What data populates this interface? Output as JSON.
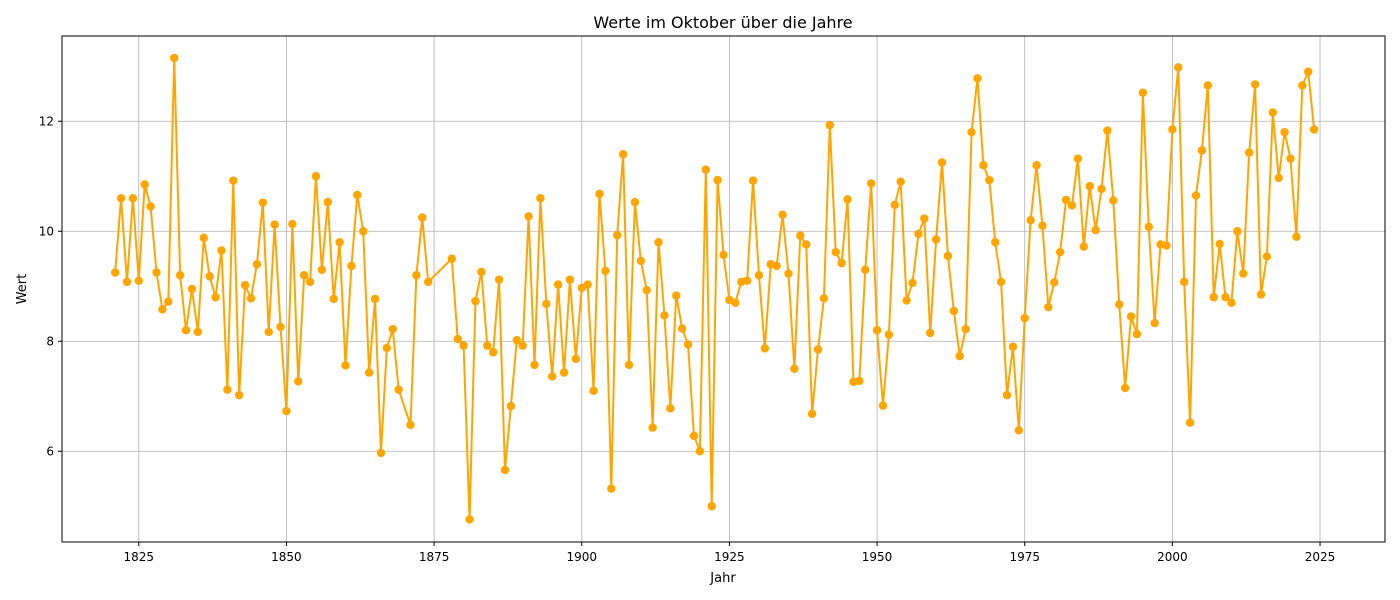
{
  "chart_data": {
    "type": "line",
    "title": "Werte im Oktober über die Jahre",
    "xlabel": "Jahr",
    "ylabel": "Wert",
    "xlim": [
      1812,
      2036
    ],
    "ylim": [
      4.35,
      13.55
    ],
    "x_ticks": [
      1825,
      1850,
      1875,
      1900,
      1925,
      1950,
      1975,
      2000,
      2025
    ],
    "y_ticks": [
      6,
      8,
      10,
      12
    ],
    "grid": true,
    "series": [
      {
        "color": "#ffa500",
        "marker": "circle",
        "points": [
          [
            1821,
            9.25
          ],
          [
            1822,
            10.6
          ],
          [
            1823,
            9.08
          ],
          [
            1824,
            10.6
          ],
          [
            1825,
            9.1
          ],
          [
            1826,
            10.85
          ],
          [
            1827,
            10.45
          ],
          [
            1828,
            9.25
          ],
          [
            1829,
            8.58
          ],
          [
            1830,
            8.72
          ],
          [
            1831,
            13.15
          ],
          [
            1832,
            9.2
          ],
          [
            1833,
            8.2
          ],
          [
            1834,
            8.95
          ],
          [
            1835,
            8.17
          ],
          [
            1836,
            9.88
          ],
          [
            1837,
            9.18
          ],
          [
            1838,
            8.8
          ],
          [
            1839,
            9.65
          ],
          [
            1840,
            7.12
          ],
          [
            1841,
            10.92
          ],
          [
            1842,
            7.02
          ],
          [
            1843,
            9.02
          ],
          [
            1844,
            8.78
          ],
          [
            1845,
            9.4
          ],
          [
            1846,
            10.52
          ],
          [
            1847,
            8.17
          ],
          [
            1848,
            10.12
          ],
          [
            1849,
            8.26
          ],
          [
            1850,
            6.73
          ],
          [
            1851,
            10.13
          ],
          [
            1852,
            7.27
          ],
          [
            1853,
            9.2
          ],
          [
            1854,
            9.08
          ],
          [
            1855,
            11.0
          ],
          [
            1856,
            9.3
          ],
          [
            1857,
            10.53
          ],
          [
            1858,
            8.77
          ],
          [
            1859,
            9.8
          ],
          [
            1860,
            7.56
          ],
          [
            1861,
            9.37
          ],
          [
            1862,
            10.66
          ],
          [
            1863,
            10.0
          ],
          [
            1864,
            7.43
          ],
          [
            1865,
            8.77
          ],
          [
            1866,
            5.97
          ],
          [
            1867,
            7.88
          ],
          [
            1868,
            8.22
          ],
          [
            1869,
            7.12
          ],
          [
            1871,
            6.48
          ],
          [
            1872,
            9.2
          ],
          [
            1873,
            10.25
          ],
          [
            1874,
            9.08
          ],
          [
            1878,
            9.5
          ],
          [
            1879,
            8.04
          ],
          [
            1880,
            7.92
          ],
          [
            1881,
            4.76
          ],
          [
            1882,
            8.73
          ],
          [
            1883,
            9.26
          ],
          [
            1884,
            7.92
          ],
          [
            1885,
            7.8
          ],
          [
            1886,
            9.12
          ],
          [
            1887,
            5.66
          ],
          [
            1888,
            6.82
          ],
          [
            1889,
            8.02
          ],
          [
            1890,
            7.92
          ],
          [
            1891,
            10.27
          ],
          [
            1892,
            7.57
          ],
          [
            1893,
            10.6
          ],
          [
            1894,
            8.68
          ],
          [
            1895,
            7.36
          ],
          [
            1896,
            9.03
          ],
          [
            1897,
            7.43
          ],
          [
            1898,
            9.12
          ],
          [
            1899,
            7.68
          ],
          [
            1900,
            8.97
          ],
          [
            1901,
            9.03
          ],
          [
            1902,
            7.1
          ],
          [
            1903,
            10.68
          ],
          [
            1904,
            9.28
          ],
          [
            1905,
            5.32
          ],
          [
            1906,
            9.93
          ],
          [
            1907,
            11.4
          ],
          [
            1908,
            7.57
          ],
          [
            1909,
            10.53
          ],
          [
            1910,
            9.46
          ],
          [
            1911,
            8.93
          ],
          [
            1912,
            6.43
          ],
          [
            1913,
            9.8
          ],
          [
            1914,
            8.47
          ],
          [
            1915,
            6.78
          ],
          [
            1916,
            8.83
          ],
          [
            1917,
            8.23
          ],
          [
            1918,
            7.94
          ],
          [
            1919,
            6.28
          ],
          [
            1920,
            6.0
          ],
          [
            1921,
            11.12
          ],
          [
            1922,
            5.0
          ],
          [
            1923,
            10.93
          ],
          [
            1924,
            9.57
          ],
          [
            1925,
            8.75
          ],
          [
            1926,
            8.7
          ],
          [
            1927,
            9.08
          ],
          [
            1928,
            9.1
          ],
          [
            1929,
            10.92
          ],
          [
            1930,
            9.2
          ],
          [
            1931,
            7.87
          ],
          [
            1932,
            9.4
          ],
          [
            1933,
            9.37
          ],
          [
            1934,
            10.3
          ],
          [
            1935,
            9.23
          ],
          [
            1936,
            7.5
          ],
          [
            1937,
            9.92
          ],
          [
            1938,
            9.76
          ],
          [
            1939,
            6.68
          ],
          [
            1940,
            7.85
          ],
          [
            1941,
            8.78
          ],
          [
            1942,
            11.93
          ],
          [
            1943,
            9.62
          ],
          [
            1944,
            9.42
          ],
          [
            1945,
            10.58
          ],
          [
            1946,
            7.26
          ],
          [
            1947,
            7.28
          ],
          [
            1948,
            9.3
          ],
          [
            1949,
            10.87
          ],
          [
            1950,
            8.2
          ],
          [
            1951,
            6.83
          ],
          [
            1952,
            8.12
          ],
          [
            1953,
            10.48
          ],
          [
            1954,
            10.9
          ],
          [
            1955,
            8.74
          ],
          [
            1956,
            9.06
          ],
          [
            1957,
            9.95
          ],
          [
            1958,
            10.23
          ],
          [
            1959,
            8.15
          ],
          [
            1960,
            9.85
          ],
          [
            1961,
            11.25
          ],
          [
            1962,
            9.55
          ],
          [
            1963,
            8.55
          ],
          [
            1964,
            7.73
          ],
          [
            1965,
            8.22
          ],
          [
            1966,
            11.8
          ],
          [
            1967,
            12.78
          ],
          [
            1968,
            11.2
          ],
          [
            1969,
            10.93
          ],
          [
            1970,
            9.8
          ],
          [
            1971,
            9.08
          ],
          [
            1972,
            7.02
          ],
          [
            1973,
            7.9
          ],
          [
            1974,
            6.38
          ],
          [
            1975,
            8.42
          ],
          [
            1976,
            10.2
          ],
          [
            1977,
            11.2
          ],
          [
            1978,
            10.1
          ],
          [
            1979,
            8.62
          ],
          [
            1980,
            9.07
          ],
          [
            1981,
            9.62
          ],
          [
            1982,
            10.57
          ],
          [
            1983,
            10.47
          ],
          [
            1984,
            11.32
          ],
          [
            1985,
            9.72
          ],
          [
            1986,
            10.82
          ],
          [
            1987,
            10.02
          ],
          [
            1988,
            10.77
          ],
          [
            1989,
            11.83
          ],
          [
            1990,
            10.56
          ],
          [
            1991,
            8.67
          ],
          [
            1992,
            7.15
          ],
          [
            1993,
            8.45
          ],
          [
            1994,
            8.13
          ],
          [
            1995,
            12.52
          ],
          [
            1996,
            10.08
          ],
          [
            1997,
            8.33
          ],
          [
            1998,
            9.76
          ],
          [
            1999,
            9.74
          ],
          [
            2000,
            11.85
          ],
          [
            2001,
            12.98
          ],
          [
            2002,
            9.08
          ],
          [
            2003,
            6.52
          ],
          [
            2004,
            10.65
          ],
          [
            2005,
            11.47
          ],
          [
            2006,
            12.65
          ],
          [
            2007,
            8.8
          ],
          [
            2008,
            9.77
          ],
          [
            2009,
            8.8
          ],
          [
            2010,
            8.7
          ],
          [
            2011,
            10.0
          ],
          [
            2012,
            9.23
          ],
          [
            2013,
            11.43
          ],
          [
            2014,
            12.67
          ],
          [
            2015,
            8.85
          ],
          [
            2016,
            9.54
          ],
          [
            2017,
            12.16
          ],
          [
            2018,
            10.97
          ],
          [
            2019,
            11.8
          ],
          [
            2020,
            11.32
          ],
          [
            2021,
            9.9
          ],
          [
            2022,
            12.65
          ],
          [
            2023,
            12.9
          ],
          [
            2024,
            11.85
          ]
        ]
      }
    ]
  }
}
